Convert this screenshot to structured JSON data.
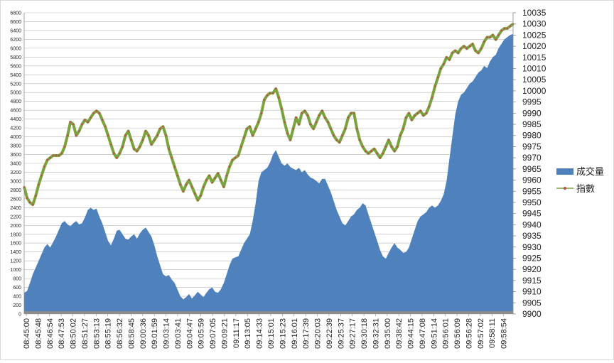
{
  "chart_data": {
    "type": "area+line",
    "title": "",
    "xlabel": "",
    "ylabel": "",
    "x_ticks": [
      "08:45:00",
      "08:45:48",
      "08:46:54",
      "08:47:53",
      "08:50:02",
      "08:51:27",
      "08:53:13",
      "08:55:19",
      "08:56:32",
      "08:58:45",
      "09:00:36",
      "09:01:59",
      "09:03:14",
      "09:03:41",
      "09:04:47",
      "09:05:59",
      "09:07:05",
      "09:09:21",
      "09:11:17",
      "09:13:05",
      "09:14:33",
      "09:15:01",
      "09:15:23",
      "09:16:01",
      "09:17:39",
      "09:20:03",
      "09:22:39",
      "09:25:37",
      "09:27:17",
      "09:30:18",
      "09:32:31",
      "09:35:00",
      "09:38:42",
      "09:44:15",
      "09:47:08",
      "09:51:14",
      "09:56:01",
      "09:56:09",
      "09:56:28",
      "09:57:02",
      "09:58:11",
      "09:58:54"
    ],
    "y_left_ticks": [
      0,
      200,
      400,
      600,
      800,
      1000,
      1200,
      1400,
      1600,
      1800,
      2000,
      2200,
      2400,
      2600,
      2800,
      3000,
      3200,
      3400,
      3600,
      3800,
      4000,
      4200,
      4400,
      4600,
      4800,
      5000,
      5200,
      5400,
      5600,
      5800,
      6000,
      6200,
      6400,
      6600,
      6800
    ],
    "y_right_ticks": [
      9900,
      9905,
      9910,
      9915,
      9920,
      9925,
      9930,
      9935,
      9940,
      9945,
      9950,
      9955,
      9960,
      9965,
      9970,
      9975,
      9980,
      9985,
      9990,
      9995,
      10000,
      10005,
      10010,
      10015,
      10020,
      10025,
      10030,
      10035
    ],
    "ylim_left": [
      0,
      6800
    ],
    "ylim_right": [
      9900,
      10035
    ],
    "grid": "horizontal",
    "legend_position": "right",
    "series": [
      {
        "name": "成交量",
        "kind": "area",
        "axis": "left",
        "color": "#4f81bd",
        "values": [
          480,
          520,
          700,
          900,
          1050,
          1200,
          1350,
          1500,
          1580,
          1500,
          1620,
          1750,
          1900,
          2050,
          2100,
          2020,
          1980,
          2050,
          2100,
          2020,
          2050,
          2180,
          2350,
          2400,
          2350,
          2380,
          2200,
          2050,
          1850,
          1650,
          1550,
          1700,
          1880,
          1900,
          1800,
          1700,
          1680,
          1750,
          1800,
          1700,
          1820,
          1900,
          1950,
          1850,
          1750,
          1550,
          1300,
          1100,
          900,
          850,
          880,
          780,
          700,
          550,
          400,
          330,
          380,
          450,
          350,
          420,
          500,
          440,
          380,
          480,
          560,
          600,
          500,
          480,
          560,
          700,
          900,
          1100,
          1250,
          1280,
          1300,
          1450,
          1600,
          1700,
          1800,
          2100,
          2500,
          3000,
          3200,
          3250,
          3300,
          3420,
          3600,
          3700,
          3550,
          3400,
          3350,
          3400,
          3320,
          3280,
          3250,
          3300,
          3200,
          3250,
          3150,
          3080,
          3050,
          3000,
          2950,
          3050,
          3050,
          2900,
          2750,
          2550,
          2350,
          2200,
          2050,
          2000,
          2100,
          2200,
          2250,
          2350,
          2400,
          2500,
          2450,
          2250,
          2050,
          1850,
          1650,
          1450,
          1300,
          1250,
          1380,
          1500,
          1600,
          1500,
          1450,
          1380,
          1400,
          1500,
          1700,
          1900,
          2100,
          2200,
          2250,
          2300,
          2400,
          2450,
          2400,
          2450,
          2550,
          2700,
          3000,
          3500,
          4000,
          4500,
          4800,
          4950,
          5000,
          5100,
          5200,
          5250,
          5350,
          5450,
          5500,
          5600,
          5550,
          5700,
          5800,
          5850,
          6000,
          6100,
          6200,
          6250,
          6300,
          6320
        ]
      },
      {
        "name": "指數",
        "kind": "line",
        "axis": "right",
        "color": "#7aa33d",
        "marker_color": "#c0504d",
        "values": [
          9957,
          9952,
          9950,
          9949,
          9953,
          9958,
          9962,
          9966,
          9969,
          9970,
          9971,
          9971,
          9971,
          9972,
          9975,
          9980,
          9986,
          9985,
          9980,
          9982,
          9985,
          9987,
          9986,
          9988,
          9990,
          9991,
          9990,
          9987,
          9984,
          9980,
          9976,
          9972,
          9970,
          9972,
          9975,
          9980,
          9982,
          9978,
          9974,
          9973,
          9975,
          9978,
          9982,
          9980,
          9976,
          9978,
          9980,
          9983,
          9984,
          9980,
          9974,
          9970,
          9966,
          9962,
          9958,
          9955,
          9958,
          9960,
          9957,
          9954,
          9951,
          9953,
          9957,
          9960,
          9962,
          9959,
          9961,
          9963,
          9960,
          9957,
          9962,
          9966,
          9969,
          9970,
          9971,
          9975,
          9979,
          9983,
          9984,
          9980,
          9983,
          9986,
          9990,
          9996,
          9998,
          9999,
          9999,
          10001,
          9997,
          9992,
          9986,
          9981,
          9978,
          9983,
          9988,
          9985,
          9990,
          9991,
          9989,
          9985,
          9983,
          9986,
          9989,
          9991,
          9988,
          9986,
          9983,
          9980,
          9978,
          9977,
          9980,
          9983,
          9988,
          9990,
          9990,
          9983,
          9978,
          9975,
          9973,
          9972,
          9973,
          9974,
          9972,
          9970,
          9972,
          9975,
          9978,
          9975,
          9973,
          9975,
          9980,
          9983,
          9988,
          9990,
          9987,
          9989,
          9990,
          9991,
          9989,
          9990,
          9993,
          9997,
          10002,
          10006,
          10010,
          10012,
          10015,
          10014,
          10017,
          10018,
          10017,
          10019,
          10020,
          10019,
          10020,
          10021,
          10018,
          10017,
          10019,
          10022,
          10024,
          10024,
          10025,
          10023,
          10025,
          10027,
          10028,
          10028,
          10029,
          10030
        ]
      }
    ]
  }
}
